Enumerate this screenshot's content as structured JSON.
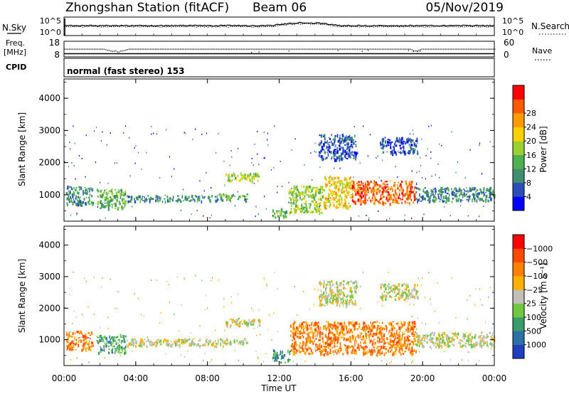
{
  "header": {
    "station": "Zhongshan Station (fitACF)",
    "beam": "Beam 06",
    "date": "05/Nov/2019"
  },
  "noise_panel": {
    "left_label": "N.Sky",
    "right_label": "N.Search",
    "left_ticks": [
      "10^5",
      "10^0"
    ],
    "right_ticks": [
      "10^5",
      "10^0"
    ]
  },
  "freq_panel": {
    "left_label_1": "Freq.",
    "left_label_2": "[MHz]",
    "right_label": "Nave",
    "left_ticks": [
      "18",
      "8"
    ],
    "right_ticks": [
      "60",
      "0"
    ]
  },
  "cpid": {
    "label": "CPID",
    "text": "normal (fast stereo) 153"
  },
  "x_axis": {
    "title": "Time UT",
    "ticks": [
      "00:00",
      "04:00",
      "08:00",
      "12:00",
      "16:00",
      "20:00",
      "00:00"
    ]
  },
  "chart_data": [
    {
      "type": "heatmap",
      "panel": "power",
      "ylabel": "Slant Range [km]",
      "yticks": [
        1000,
        2000,
        3000,
        4000
      ],
      "ylim": [
        180,
        4600
      ],
      "xlim_hours": [
        0,
        24
      ],
      "colorbar": {
        "label": "Power [dB]",
        "ticks": [
          "4",
          "8",
          "12",
          "16",
          "20",
          "24",
          "28"
        ],
        "colors": [
          "#0000ff",
          "#2a4db8",
          "#3f8f6e",
          "#4fb04f",
          "#9cd030",
          "#ffd000",
          "#ff9a00",
          "#ff5a00",
          "#ff0000"
        ]
      },
      "echo_regions": [
        {
          "t0": 0.1,
          "t1": 1.6,
          "r0": 700,
          "r1": 1300,
          "level": 2
        },
        {
          "t0": 1.8,
          "t1": 3.4,
          "r0": 600,
          "r1": 1200,
          "level": 3
        },
        {
          "t0": 3.4,
          "t1": 8.6,
          "r0": 820,
          "r1": 1000,
          "level": 2
        },
        {
          "t0": 8.6,
          "t1": 10.2,
          "r0": 850,
          "r1": 1050,
          "level": 3
        },
        {
          "t0": 9.0,
          "t1": 10.9,
          "r0": 1450,
          "r1": 1700,
          "level": 4
        },
        {
          "t0": 11.6,
          "t1": 12.4,
          "r0": 300,
          "r1": 600,
          "level": 3
        },
        {
          "t0": 12.5,
          "t1": 14.5,
          "r0": 450,
          "r1": 1300,
          "level": 4
        },
        {
          "t0": 14.5,
          "t1": 16.0,
          "r0": 600,
          "r1": 1600,
          "level": 5
        },
        {
          "t0": 16.0,
          "t1": 19.6,
          "r0": 750,
          "r1": 1450,
          "level": 7
        },
        {
          "t0": 19.6,
          "t1": 24.0,
          "r0": 800,
          "r1": 1250,
          "level": 2
        },
        {
          "t0": 14.2,
          "t1": 16.3,
          "r0": 2100,
          "r1": 2900,
          "level": 1
        },
        {
          "t0": 17.6,
          "t1": 19.7,
          "r0": 2300,
          "r1": 2800,
          "level": 1
        }
      ]
    },
    {
      "type": "heatmap",
      "panel": "velocity",
      "ylabel": "Slant Range [km]",
      "yticks": [
        1000,
        2000,
        3000,
        4000
      ],
      "ylim": [
        180,
        4600
      ],
      "xlim_hours": [
        0,
        24
      ],
      "colorbar": {
        "label": "Velocity [m s⁻¹]",
        "ticks": [
          "1000",
          "500",
          "100",
          "25",
          "−25",
          "−100",
          "−500",
          "−1000"
        ],
        "colors": [
          "#2040c0",
          "#2e6fa6",
          "#3a9c6a",
          "#70c840",
          "#c0c0b8",
          "#ffb000",
          "#ff8000",
          "#ff4800",
          "#ff0000"
        ]
      },
      "echo_regions": [
        {
          "t0": 0.1,
          "t1": 1.6,
          "r0": 700,
          "r1": 1300,
          "level": 6
        },
        {
          "t0": 1.8,
          "t1": 3.4,
          "r0": 600,
          "r1": 1200,
          "level": 2
        },
        {
          "t0": 3.4,
          "t1": 10.2,
          "r0": 820,
          "r1": 1050,
          "level": 4
        },
        {
          "t0": 9.0,
          "t1": 10.9,
          "r0": 1450,
          "r1": 1700,
          "level": 4
        },
        {
          "t0": 11.6,
          "t1": 12.6,
          "r0": 300,
          "r1": 700,
          "level": 2
        },
        {
          "t0": 12.6,
          "t1": 19.6,
          "r0": 550,
          "r1": 1600,
          "level": 6
        },
        {
          "t0": 19.6,
          "t1": 24.0,
          "r0": 800,
          "r1": 1250,
          "level": 4
        },
        {
          "t0": 14.2,
          "t1": 16.3,
          "r0": 2100,
          "r1": 2900,
          "level": 4
        },
        {
          "t0": 17.6,
          "t1": 19.7,
          "r0": 2300,
          "r1": 2800,
          "level": 4
        }
      ]
    }
  ]
}
